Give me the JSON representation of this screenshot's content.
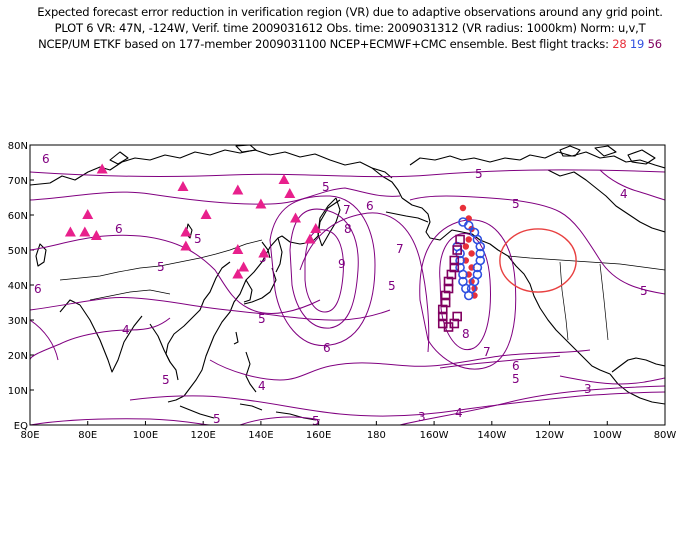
{
  "header": {
    "line1": "Expected forecast error reduction in verification region (VR) due to adaptive observations around any grid point.",
    "line2": "PLOT 6 VR: 47N, -124W, Verif. time 2009031612 Obs. time: 2009031312 (VR radius: 1000km) Norm: u,v,T",
    "line3_prefix": "NCEP/UM ETKF based on 177-member 2009031100 NCEP+ECMWF+CMC ensemble. Best flight tracks: ",
    "tracks": [
      {
        "label": "28",
        "color": "#e8303a"
      },
      {
        "label": "19",
        "color": "#3050e0"
      },
      {
        "label": "56",
        "color": "#800060"
      }
    ]
  },
  "map": {
    "lon_labels": [
      "80E",
      "80E",
      "100E",
      "120E",
      "140E",
      "160E",
      "180",
      "160W",
      "140W",
      "120W",
      "100W",
      "80W"
    ],
    "lat_labels": [
      "EQ",
      "10N",
      "20N",
      "30N",
      "40N",
      "50N",
      "60N",
      "70N",
      "80N"
    ],
    "lon_range": [
      60,
      280
    ],
    "lat_range": [
      0,
      80
    ],
    "contour_color": "#800080",
    "contour_labels": [
      "6",
      "5",
      "5",
      "5",
      "6",
      "7",
      "6",
      "8",
      "9",
      "7",
      "5",
      "5",
      "4",
      "6",
      "5",
      "7",
      "8",
      "6",
      "5",
      "5",
      "5",
      "4",
      "4",
      "5",
      "5",
      "4",
      "3",
      "3",
      "6",
      "5",
      "5"
    ],
    "verification_region": {
      "lat": 47,
      "lon": -124,
      "radius_km": 1000,
      "color": "#e84040"
    },
    "raob_color": "#e8208c",
    "raob_sites": [
      {
        "lon": 85,
        "lat": 73
      },
      {
        "lon": 113,
        "lat": 68
      },
      {
        "lon": 132,
        "lat": 67
      },
      {
        "lon": 148,
        "lat": 70
      },
      {
        "lon": 150,
        "lat": 66
      },
      {
        "lon": 80,
        "lat": 60
      },
      {
        "lon": 121,
        "lat": 60
      },
      {
        "lon": 140,
        "lat": 63
      },
      {
        "lon": 152,
        "lat": 59
      },
      {
        "lon": 74,
        "lat": 55
      },
      {
        "lon": 79,
        "lat": 55
      },
      {
        "lon": 83,
        "lat": 54
      },
      {
        "lon": 114,
        "lat": 55
      },
      {
        "lon": 114,
        "lat": 51
      },
      {
        "lon": 132,
        "lat": 50
      },
      {
        "lon": 157,
        "lat": 53
      },
      {
        "lon": 159,
        "lat": 56
      },
      {
        "lon": 134,
        "lat": 45
      },
      {
        "lon": 132,
        "lat": 43
      },
      {
        "lon": 141,
        "lat": 49
      }
    ],
    "flight_tracks": [
      {
        "name": "28",
        "color": "#e8303a",
        "shape": "dot",
        "points": [
          [
            -150,
            62
          ],
          [
            -148,
            59
          ],
          [
            -147,
            56
          ],
          [
            -148,
            53
          ],
          [
            -149,
            51
          ],
          [
            -147,
            49
          ],
          [
            -149,
            47
          ],
          [
            -147,
            45
          ],
          [
            -148,
            43
          ],
          [
            -147,
            41
          ],
          [
            -146,
            39
          ],
          [
            -146,
            37
          ]
        ]
      },
      {
        "name": "19",
        "color": "#3050e0",
        "shape": "circle",
        "points": [
          [
            -150,
            58
          ],
          [
            -148,
            57
          ],
          [
            -146,
            55
          ],
          [
            -145,
            53
          ],
          [
            -144,
            51
          ],
          [
            -144,
            49
          ],
          [
            -144,
            47
          ],
          [
            -145,
            45
          ],
          [
            -145,
            43
          ],
          [
            -146,
            41
          ],
          [
            -147,
            39
          ],
          [
            -148,
            37
          ],
          [
            -149,
            39
          ],
          [
            -150,
            41
          ],
          [
            -150,
            43
          ],
          [
            -151,
            45
          ],
          [
            -151,
            47
          ],
          [
            -151,
            49
          ],
          [
            -152,
            51
          ]
        ]
      },
      {
        "name": "56",
        "color": "#800060",
        "shape": "square",
        "points": [
          [
            -151,
            53
          ],
          [
            -152,
            50
          ],
          [
            -153,
            47
          ],
          [
            -153,
            45
          ],
          [
            -154,
            43
          ],
          [
            -155,
            41
          ],
          [
            -155,
            39
          ],
          [
            -156,
            37
          ],
          [
            -156,
            35
          ],
          [
            -157,
            33
          ],
          [
            -157,
            31
          ],
          [
            -157,
            29
          ],
          [
            -155,
            28
          ],
          [
            -153,
            29
          ],
          [
            -152,
            31
          ]
        ]
      }
    ]
  }
}
